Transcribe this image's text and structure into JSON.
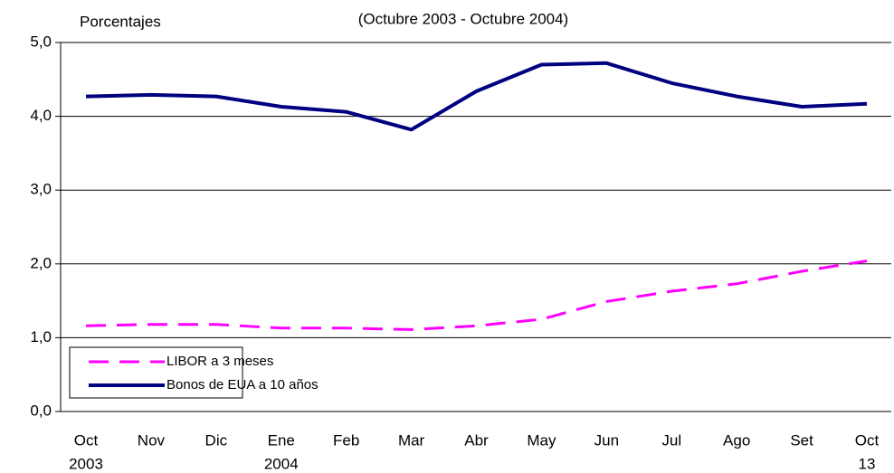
{
  "chart_data": {
    "type": "line",
    "title": "(Octubre 2003 - Octubre 2004)",
    "y_label": "Porcentajes",
    "categories": [
      "Oct",
      "Nov",
      "Dic",
      "Ene",
      "Feb",
      "Mar",
      "Abr",
      "May",
      "Jun",
      "Jul",
      "Ago",
      "Set",
      "Oct"
    ],
    "sublabels": [
      "2003",
      null,
      null,
      "2004",
      null,
      null,
      null,
      null,
      null,
      null,
      null,
      null,
      "13"
    ],
    "series": [
      {
        "name": "LIBOR a 3  meses",
        "color": "#ff00ff",
        "dash": true,
        "values": [
          1.16,
          1.18,
          1.18,
          1.13,
          1.13,
          1.11,
          1.16,
          1.25,
          1.49,
          1.63,
          1.73,
          1.9,
          2.04
        ]
      },
      {
        "name": "Bonos de EUA a 10 años",
        "color": "#000080",
        "dash": false,
        "values": [
          4.27,
          4.29,
          4.27,
          4.13,
          4.06,
          3.82,
          4.34,
          4.7,
          4.72,
          4.45,
          4.27,
          4.13,
          4.17
        ]
      }
    ],
    "ylim": [
      0,
      5
    ],
    "yticks": [
      {
        "value": 0,
        "label": "0,0"
      },
      {
        "value": 1,
        "label": "1,0"
      },
      {
        "value": 2,
        "label": "2,0"
      },
      {
        "value": 3,
        "label": "3,0"
      },
      {
        "value": 4,
        "label": "4,0"
      },
      {
        "value": 5,
        "label": "5,0"
      }
    ],
    "grid": true,
    "legend": "lower-left"
  }
}
